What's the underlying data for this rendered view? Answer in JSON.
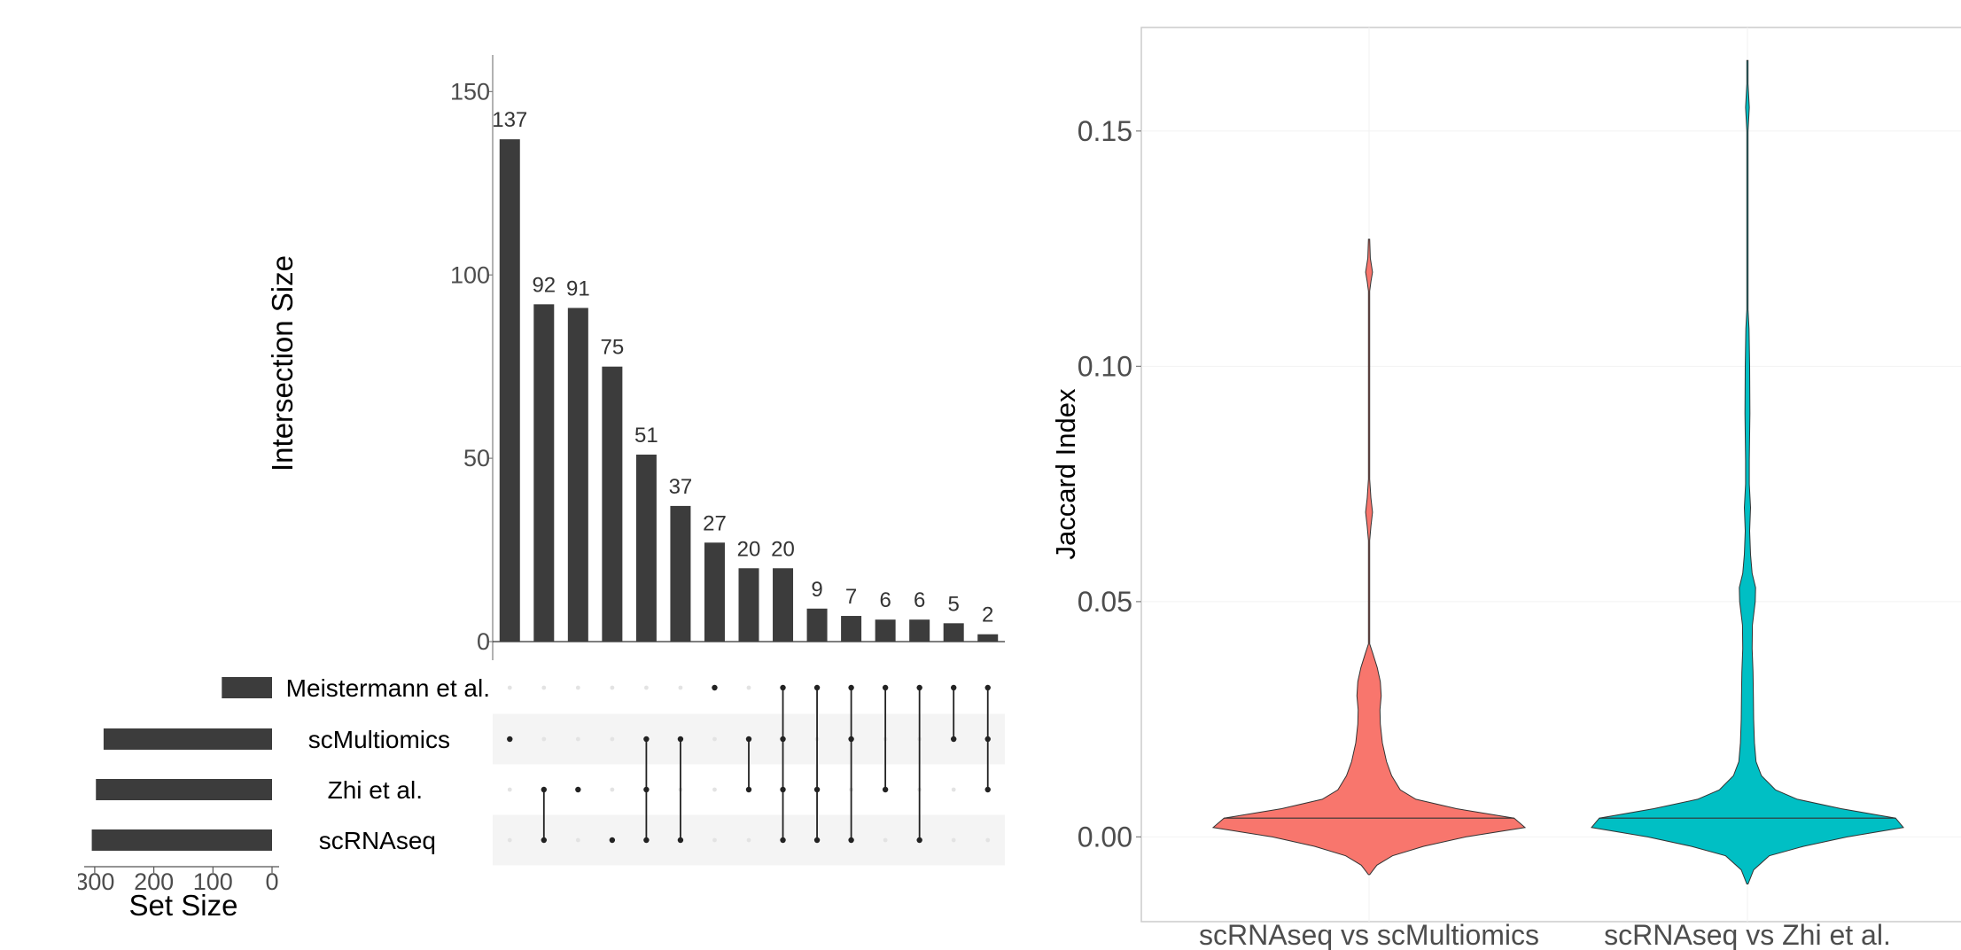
{
  "chart_data": [
    {
      "type": "bar",
      "subtype": "upset",
      "ylabel": "Intersection Size",
      "ylim": [
        0,
        160
      ],
      "yticks": [
        0,
        50,
        100,
        150
      ],
      "sets": [
        "Meistermann et al.",
        "scMultiomics",
        "Zhi et al.",
        "scRNAseq"
      ],
      "set_sizes": [
        85,
        285,
        298,
        305
      ],
      "set_size_label": "Set Size",
      "set_size_ticks": [
        "300",
        "200",
        "100",
        "0"
      ],
      "set_size_tick_values": [
        300,
        200,
        100,
        0
      ],
      "set_size_max": 330,
      "intersections": [
        {
          "value": 137,
          "members": [
            "scMultiomics"
          ]
        },
        {
          "value": 92,
          "members": [
            "Zhi et al.",
            "scRNAseq"
          ]
        },
        {
          "value": 91,
          "members": [
            "Zhi et al."
          ]
        },
        {
          "value": 75,
          "members": [
            "scRNAseq"
          ]
        },
        {
          "value": 51,
          "members": [
            "scMultiomics",
            "Zhi et al.",
            "scRNAseq"
          ]
        },
        {
          "value": 37,
          "members": [
            "scMultiomics",
            "scRNAseq"
          ]
        },
        {
          "value": 27,
          "members": [
            "Meistermann et al."
          ]
        },
        {
          "value": 20,
          "members": [
            "scMultiomics",
            "Zhi et al."
          ]
        },
        {
          "value": 20,
          "members": [
            "Meistermann et al.",
            "scMultiomics",
            "Zhi et al.",
            "scRNAseq"
          ]
        },
        {
          "value": 9,
          "members": [
            "Meistermann et al.",
            "Zhi et al.",
            "scRNAseq"
          ]
        },
        {
          "value": 7,
          "members": [
            "Meistermann et al.",
            "scMultiomics",
            "scRNAseq"
          ]
        },
        {
          "value": 6,
          "members": [
            "Meistermann et al.",
            "Zhi et al."
          ]
        },
        {
          "value": 6,
          "members": [
            "Meistermann et al.",
            "scRNAseq"
          ]
        },
        {
          "value": 5,
          "members": [
            "Meistermann et al.",
            "scMultiomics"
          ]
        },
        {
          "value": 2,
          "members": [
            "Meistermann et al.",
            "scMultiomics",
            "Zhi et al."
          ]
        }
      ],
      "bar_color": "#3c3c3c"
    },
    {
      "type": "violin",
      "ylabel": "Jaccard Index",
      "ylim": [
        -0.018,
        0.172
      ],
      "yticks": [
        "0.00",
        "0.05",
        "0.10",
        "0.15"
      ],
      "ytick_values": [
        0.0,
        0.05,
        0.1,
        0.15
      ],
      "categories": [
        "scRNAseq vs scMultiomics",
        "scRNAseq vs Zhi et al."
      ],
      "colors": [
        "#f8766d",
        "#00bfc4"
      ],
      "series": [
        {
          "category": "scRNAseq vs scMultiomics",
          "color": "#f8766d",
          "min": -0.008,
          "max": 0.127,
          "median": 0.004,
          "density": [
            [
              -0.008,
              0.0
            ],
            [
              -0.006,
              0.05
            ],
            [
              -0.004,
              0.15
            ],
            [
              -0.002,
              0.35
            ],
            [
              0.0,
              0.62
            ],
            [
              0.002,
              1.0
            ],
            [
              0.004,
              0.93
            ],
            [
              0.006,
              0.56
            ],
            [
              0.008,
              0.3
            ],
            [
              0.01,
              0.2
            ],
            [
              0.013,
              0.145
            ],
            [
              0.016,
              0.112
            ],
            [
              0.02,
              0.085
            ],
            [
              0.024,
              0.072
            ],
            [
              0.027,
              0.07
            ],
            [
              0.03,
              0.078
            ],
            [
              0.033,
              0.072
            ],
            [
              0.036,
              0.052
            ],
            [
              0.039,
              0.024
            ],
            [
              0.041,
              0.0
            ],
            [
              0.045,
              0.0
            ],
            [
              0.063,
              0.0
            ],
            [
              0.066,
              0.012
            ],
            [
              0.069,
              0.022
            ],
            [
              0.072,
              0.012
            ],
            [
              0.076,
              0.0
            ],
            [
              0.116,
              0.0
            ],
            [
              0.118,
              0.012
            ],
            [
              0.12,
              0.022
            ],
            [
              0.123,
              0.008
            ],
            [
              0.127,
              0.0
            ]
          ]
        },
        {
          "category": "scRNAseq vs Zhi et al.",
          "color": "#00bfc4",
          "min": -0.01,
          "max": 0.165,
          "median": 0.004,
          "density": [
            [
              -0.01,
              0.0
            ],
            [
              -0.007,
              0.04
            ],
            [
              -0.004,
              0.14
            ],
            [
              -0.002,
              0.36
            ],
            [
              0.0,
              0.64
            ],
            [
              0.002,
              1.0
            ],
            [
              0.004,
              0.95
            ],
            [
              0.006,
              0.6
            ],
            [
              0.008,
              0.32
            ],
            [
              0.01,
              0.18
            ],
            [
              0.013,
              0.09
            ],
            [
              0.016,
              0.055
            ],
            [
              0.02,
              0.045
            ],
            [
              0.025,
              0.04
            ],
            [
              0.03,
              0.038
            ],
            [
              0.035,
              0.036
            ],
            [
              0.04,
              0.03
            ],
            [
              0.045,
              0.032
            ],
            [
              0.05,
              0.05
            ],
            [
              0.053,
              0.052
            ],
            [
              0.056,
              0.03
            ],
            [
              0.06,
              0.02
            ],
            [
              0.065,
              0.014
            ],
            [
              0.07,
              0.02
            ],
            [
              0.075,
              0.012
            ],
            [
              0.08,
              0.012
            ],
            [
              0.09,
              0.016
            ],
            [
              0.1,
              0.014
            ],
            [
              0.108,
              0.01
            ],
            [
              0.112,
              0.004
            ],
            [
              0.12,
              0.002
            ],
            [
              0.15,
              0.002
            ],
            [
              0.155,
              0.012
            ],
            [
              0.16,
              0.002
            ],
            [
              0.165,
              0.0
            ]
          ]
        }
      ]
    }
  ]
}
